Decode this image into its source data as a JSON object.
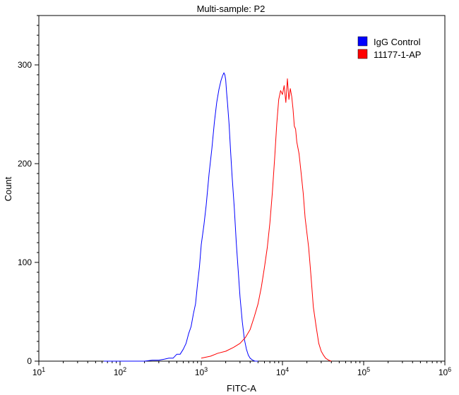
{
  "chart_data": {
    "type": "line",
    "title": "Multi-sample: P2",
    "xlabel": "FITC-A",
    "ylabel": "Count",
    "x_scale": "log",
    "xlim": [
      10,
      1000000
    ],
    "ylim": [
      0,
      350
    ],
    "x_ticks": [
      {
        "base": "10",
        "exp": "1"
      },
      {
        "base": "10",
        "exp": "2"
      },
      {
        "base": "10",
        "exp": "3"
      },
      {
        "base": "10",
        "exp": "4"
      },
      {
        "base": "10",
        "exp": "5"
      },
      {
        "base": "10",
        "exp": "6"
      }
    ],
    "y_ticks": [
      "0",
      "100",
      "200",
      "300"
    ],
    "y_tick_values": [
      0,
      100,
      200,
      300
    ],
    "legend_position": "top-right",
    "grid": false,
    "series": [
      {
        "name": "IgG Control",
        "color": "#0000ff",
        "x": [
          63,
          100,
          150,
          200,
          250,
          300,
          350,
          400,
          450,
          500,
          550,
          600,
          650,
          700,
          750,
          800,
          850,
          900,
          950,
          1000,
          1080,
          1150,
          1250,
          1350,
          1450,
          1550,
          1650,
          1750,
          1830,
          1900,
          1950,
          2000,
          2050,
          2100,
          2200,
          2300,
          2400,
          2550,
          2700,
          2850,
          3000,
          3200,
          3400,
          3600,
          3800,
          4000,
          4300,
          4600,
          5000
        ],
        "y": [
          0,
          0,
          0,
          0,
          1,
          1,
          2,
          3,
          3,
          7,
          7,
          12,
          18,
          28,
          35,
          48,
          58,
          78,
          95,
          118,
          138,
          158,
          190,
          215,
          242,
          262,
          275,
          284,
          289,
          292,
          290,
          285,
          272,
          262,
          240,
          212,
          187,
          155,
          120,
          92,
          65,
          40,
          22,
          12,
          6,
          3,
          1,
          0,
          0
        ]
      },
      {
        "name": "11177-1-AP",
        "color": "#ff0000",
        "x": [
          1000,
          1300,
          1600,
          2000,
          2500,
          3000,
          3500,
          4000,
          4500,
          5000,
          5500,
          6000,
          6500,
          7000,
          7500,
          8000,
          8500,
          9000,
          9500,
          10000,
          10500,
          11000,
          11500,
          12000,
          12500,
          13000,
          13500,
          14000,
          14500,
          15000,
          15500,
          16000,
          17000,
          18000,
          19000,
          20000,
          21000,
          22000,
          23000,
          24000,
          26000,
          28000,
          30000,
          32000,
          34000,
          37000,
          40000
        ],
        "y": [
          3,
          5,
          8,
          10,
          14,
          18,
          24,
          32,
          45,
          58,
          75,
          95,
          115,
          140,
          170,
          205,
          240,
          265,
          274,
          270,
          279,
          262,
          286,
          265,
          276,
          268,
          255,
          238,
          235,
          222,
          216,
          210,
          190,
          170,
          145,
          130,
          115,
          95,
          75,
          55,
          35,
          18,
          10,
          6,
          3,
          1,
          0
        ]
      }
    ]
  }
}
